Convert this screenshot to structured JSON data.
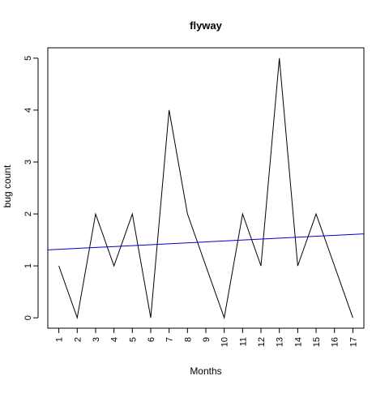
{
  "chart_data": {
    "type": "line",
    "title": "flyway",
    "xlabel": "Months",
    "ylabel": "bug count",
    "categories": [
      "1",
      "2",
      "3",
      "4",
      "5",
      "6",
      "7",
      "8",
      "9",
      "10",
      "11",
      "12",
      "13",
      "14",
      "15",
      "16",
      "17"
    ],
    "x": [
      1,
      2,
      3,
      4,
      5,
      6,
      7,
      8,
      9,
      10,
      11,
      12,
      13,
      14,
      15,
      16,
      17
    ],
    "series": [
      {
        "values": [
          1,
          0,
          2,
          1,
          2,
          0,
          4,
          2,
          1,
          0,
          2,
          1,
          5,
          1,
          2,
          1,
          0
        ],
        "color": "#000000"
      }
    ],
    "trend_line": {
      "color": "#0000cc",
      "intercept": 1.3,
      "slope": 0.018
    },
    "xlim": [
      0.4,
      17.6
    ],
    "ylim": [
      -0.2,
      5.2
    ],
    "yticks": [
      "0",
      "1",
      "2",
      "3",
      "4",
      "5"
    ],
    "grid": false,
    "legend": "none"
  }
}
